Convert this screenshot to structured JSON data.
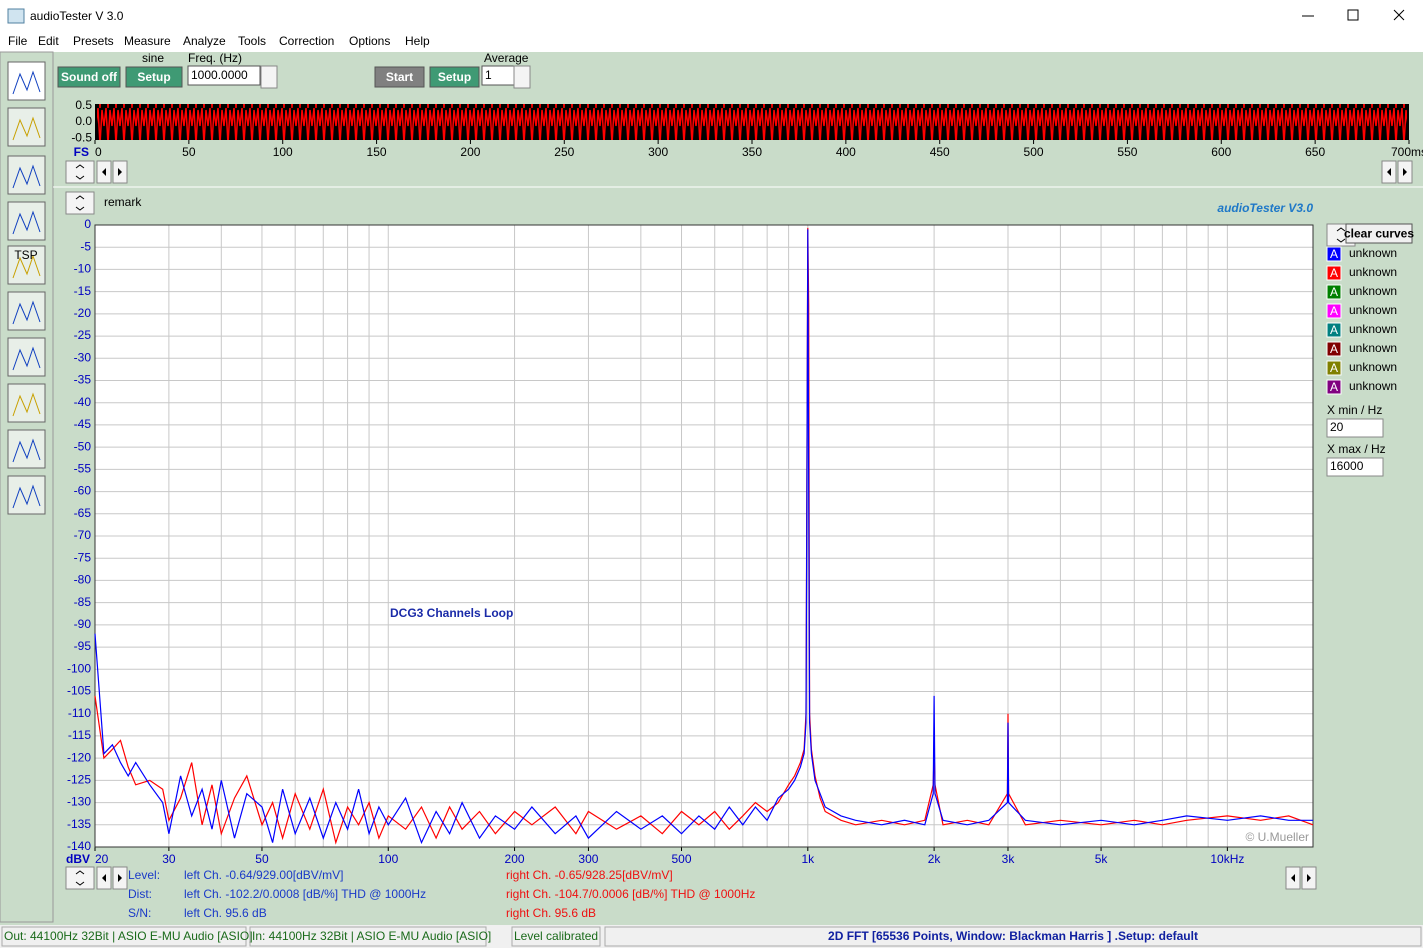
{
  "window": {
    "title": "audioTester  V 3.0"
  },
  "menu": [
    "File",
    "Edit",
    "Presets",
    "Measure",
    "Analyze",
    "Tools",
    "Correction",
    "Options",
    "Help"
  ],
  "toolbar": {
    "sound_off": "Sound off",
    "signal": "sine",
    "setup1": "Setup",
    "freq_label": "Freq. (Hz)",
    "freq_value": "1000.0000",
    "start": "Start",
    "setup2": "Setup",
    "average_label": "Average",
    "average_value": "1"
  },
  "side_tools": {
    "tsp": "TSP"
  },
  "remark": "remark",
  "brand": "audioTester  V3.0",
  "copyright": "© U.Mueller",
  "legend_panel": {
    "clear": "clear curves",
    "xmin_label": "X min / Hz",
    "xmin": "20",
    "xmax_label": "X max / Hz",
    "xmax": "16000",
    "curves": [
      {
        "symbol": "A",
        "name": "unknown",
        "color": "#0000ff"
      },
      {
        "symbol": "A",
        "name": "unknown",
        "color": "#ff0000"
      },
      {
        "symbol": "A",
        "name": "unknown",
        "color": "#008000"
      },
      {
        "symbol": "A",
        "name": "unknown",
        "color": "#ff00ff"
      },
      {
        "symbol": "A",
        "name": "unknown",
        "color": "#008080"
      },
      {
        "symbol": "A",
        "name": "unknown",
        "color": "#800000"
      },
      {
        "symbol": "A",
        "name": "unknown",
        "color": "#808000"
      },
      {
        "symbol": "A",
        "name": "unknown",
        "color": "#800080"
      }
    ]
  },
  "readouts": [
    {
      "label": "Level:",
      "left": "left Ch. -0.64/929.00[dBV/mV]",
      "right": "right Ch. -0.65/928.25[dBV/mV]"
    },
    {
      "label": "Dist:",
      "left": "left Ch. -102.2/0.0008 [dB/%] THD @ 1000Hz",
      "right": "right Ch. -104.7/0.0006 [dB/%] THD @ 1000Hz"
    },
    {
      "label": "S/N:",
      "left": "left Ch. 95.6 dB",
      "right": "right Ch. 95.6 dB"
    }
  ],
  "status": [
    "Out: 44100Hz 32Bit  | ASIO E-MU Audio [ASIO]",
    "In: 44100Hz 32Bit  | ASIO E-MU Audio [ASIO]",
    "Level calibrated",
    "2D FFT [65536 Points, Window: Blackman Harris ]  .Setup:  default"
  ],
  "chart_data": [
    {
      "type": "waveform",
      "xlabel": "FS",
      "xlim": [
        0,
        700
      ],
      "xticks": [
        0,
        50,
        100,
        150,
        200,
        250,
        300,
        350,
        400,
        450,
        500,
        550,
        600,
        650,
        {
          "value": 700,
          "label": "700ms"
        }
      ],
      "ylim": [
        -0.55,
        0.55
      ],
      "yticks": [
        0.5,
        {
          "value": 0,
          "label": "0.0"
        },
        -0.5
      ],
      "color": "#ff0000"
    },
    {
      "type": "line",
      "annotation": "DCG3 Channels Loop",
      "ylabel": "dBV",
      "xscale": "log",
      "grid": true,
      "xlim": [
        20,
        16000
      ],
      "ylim": [
        -140,
        0
      ],
      "xticks": [
        20,
        30,
        50,
        100,
        200,
        300,
        500,
        {
          "value": 1000,
          "label": "1k"
        },
        {
          "value": 2000,
          "label": "2k"
        },
        {
          "value": 3000,
          "label": "3k"
        },
        {
          "value": 5000,
          "label": "5k"
        },
        {
          "value": 10000,
          "label": "10kHz"
        }
      ],
      "xgrid": [
        20,
        30,
        40,
        50,
        60,
        70,
        80,
        90,
        100,
        200,
        300,
        400,
        500,
        600,
        700,
        800,
        900,
        1000,
        2000,
        3000,
        4000,
        5000,
        6000,
        7000,
        8000,
        9000,
        10000
      ],
      "yticks": [
        0,
        -5,
        -10,
        -15,
        -20,
        -25,
        -30,
        -35,
        -40,
        -45,
        -50,
        -55,
        -60,
        -65,
        -70,
        -75,
        -80,
        -85,
        -90,
        -95,
        -100,
        -105,
        -110,
        -115,
        -120,
        -125,
        -130,
        -135,
        -140
      ],
      "x": [
        20,
        21,
        22,
        23,
        24,
        25,
        27,
        29,
        30,
        32,
        34,
        36,
        38,
        40,
        43,
        46,
        50,
        53,
        56,
        60,
        65,
        70,
        75,
        80,
        85,
        90,
        95,
        100,
        110,
        120,
        130,
        140,
        150,
        165,
        180,
        200,
        220,
        250,
        280,
        300,
        350,
        400,
        450,
        500,
        550,
        600,
        650,
        700,
        750,
        800,
        850,
        900,
        930,
        960,
        980,
        990,
        995,
        1000,
        1005,
        1010,
        1020,
        1040,
        1070,
        1100,
        1200,
        1300,
        1500,
        1700,
        1900,
        1990,
        2000,
        2010,
        2100,
        2400,
        2700,
        2990,
        3000,
        3010,
        3300,
        4000,
        5000,
        6000,
        7000,
        8000,
        10000,
        12000,
        14000,
        16000
      ],
      "series": [
        {
          "color": "#ff0000",
          "values": [
            -106,
            -120,
            -118,
            -116,
            -122,
            -126,
            -125,
            -127,
            -134,
            -129,
            -121,
            -135,
            -126,
            -137,
            -129,
            -124,
            -135,
            -130,
            -138,
            -128,
            -136,
            -127,
            -139,
            -131,
            -135,
            -130,
            -138,
            -133,
            -136,
            -131,
            -138,
            -131,
            -136,
            -132,
            -137,
            -132,
            -135,
            -131,
            -137,
            -132,
            -136,
            -133,
            -137,
            -132,
            -135,
            -132,
            -136,
            -133,
            -130,
            -132,
            -130,
            -126,
            -124,
            -121,
            -118,
            -110,
            -55,
            -0.65,
            -18,
            -110,
            -118,
            -124,
            -129,
            -132,
            -134,
            -135,
            -134,
            -135,
            -134,
            -126,
            -118,
            -126,
            -135,
            -134,
            -135,
            -128,
            -110,
            -128,
            -135,
            -134,
            -135,
            -134,
            -135,
            -134,
            -133,
            -134,
            -133,
            -135
          ]
        },
        {
          "color": "#0000ff",
          "values": [
            -92,
            -119,
            -117,
            -121,
            -124,
            -121,
            -126,
            -130,
            -137,
            -124,
            -133,
            -127,
            -136,
            -125,
            -138,
            -128,
            -131,
            -139,
            -127,
            -137,
            -129,
            -138,
            -130,
            -136,
            -127,
            -137,
            -131,
            -135,
            -129,
            -139,
            -132,
            -137,
            -130,
            -138,
            -133,
            -136,
            -131,
            -137,
            -133,
            -138,
            -132,
            -136,
            -133,
            -137,
            -133,
            -136,
            -131,
            -135,
            -131,
            -134,
            -129,
            -127,
            -125,
            -122,
            -119,
            -112,
            -60,
            -1,
            -60,
            -112,
            -119,
            -125,
            -128,
            -131,
            -133,
            -134,
            -135,
            -134,
            -135,
            -128,
            -106,
            -128,
            -134,
            -135,
            -134,
            -130,
            -112,
            -130,
            -134,
            -135,
            -134,
            -135,
            -134,
            -133,
            -134,
            -133,
            -134,
            -134
          ]
        }
      ]
    }
  ]
}
